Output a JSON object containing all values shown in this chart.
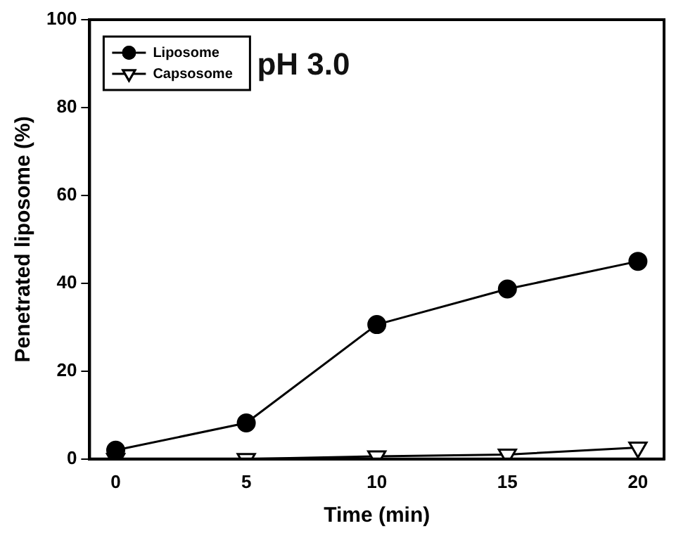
{
  "chart_data": {
    "type": "line",
    "xlabel": "Time (min)",
    "ylabel": "Penetrated liposome (%)",
    "x": [
      0,
      5,
      10,
      15,
      20
    ],
    "xlim": [
      -1,
      21
    ],
    "xticks": [
      0,
      5,
      10,
      15,
      20
    ],
    "ylim": [
      0,
      100
    ],
    "yticks": [
      0,
      20,
      40,
      60,
      80,
      100
    ],
    "grid": false,
    "legend": "top left",
    "line_style": "solid",
    "series": [
      {
        "name": "Liposome",
        "color": "#000000",
        "marker": "circle",
        "values": [
          2,
          8.2,
          30.6,
          38.7,
          45
        ]
      },
      {
        "name": "Capsosome",
        "color": "#000000",
        "marker": "triangle",
        "values": [
          0,
          0,
          0.6,
          1,
          2.6
        ]
      }
    ],
    "annotations": [
      "pH 3.0"
    ]
  }
}
